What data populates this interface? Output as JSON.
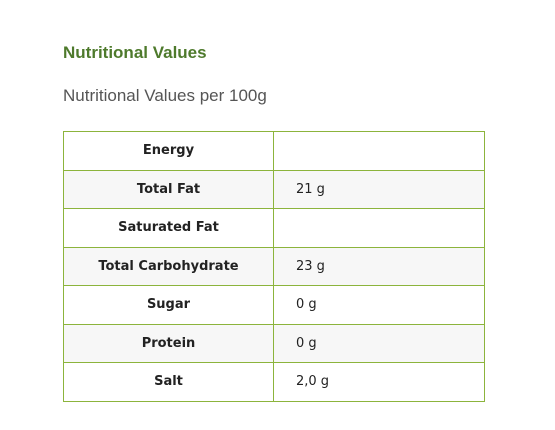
{
  "header": {
    "title": "Nutritional Values",
    "subtitle": "Nutritional Values per 100g"
  },
  "table": {
    "rows": [
      {
        "label": "Energy"
      },
      {
        "label": "Total Fat",
        "value": "21 g"
      },
      {
        "label": "Saturated Fat"
      },
      {
        "label": "Total Carbohydrate",
        "value": "23 g"
      },
      {
        "label": "Sugar",
        "value": "0 g"
      },
      {
        "label": "Protein",
        "value": "0 g"
      },
      {
        "label": "Salt",
        "value": "2,0 g"
      }
    ]
  }
}
